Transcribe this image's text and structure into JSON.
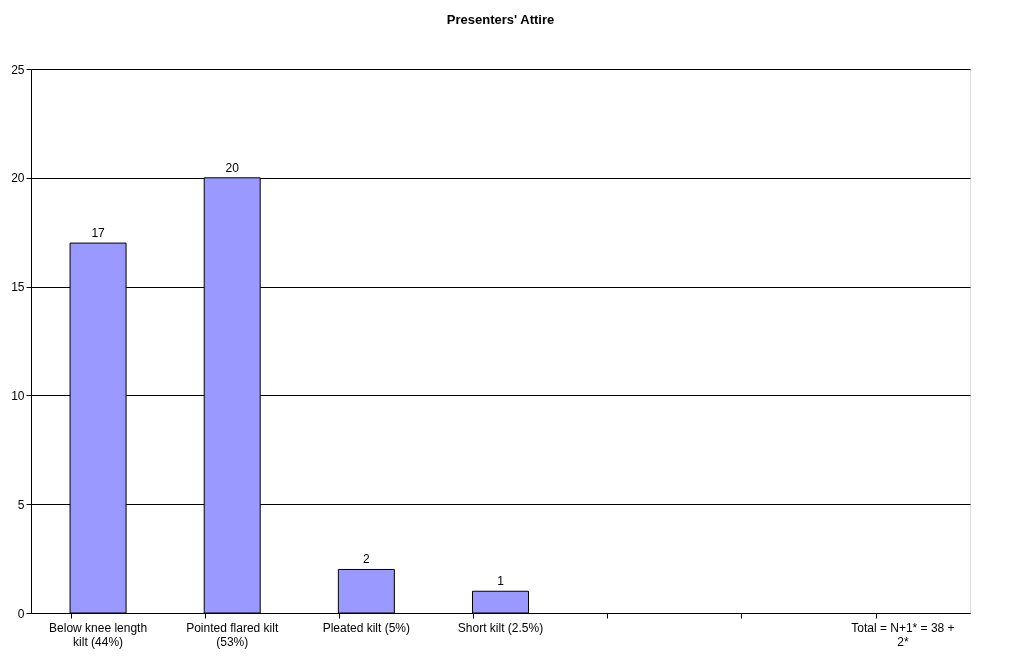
{
  "chart_data": {
    "type": "bar",
    "title": "Presenters' Attire",
    "categories": [
      "Below knee length kilt (44%)",
      "Pointed flared kilt (53%)",
      "Pleated kilt (5%)",
      "Short kilt (2.5%)",
      null,
      null,
      "Total = N+1* = 38 + 2*"
    ],
    "values": [
      17,
      20,
      2,
      1,
      null,
      null,
      null
    ],
    "color": "#9999ff",
    "ylim": [
      0,
      25
    ],
    "yticks": [
      0,
      5,
      10,
      15,
      20,
      25
    ],
    "grid": "y",
    "data_labels": true
  }
}
